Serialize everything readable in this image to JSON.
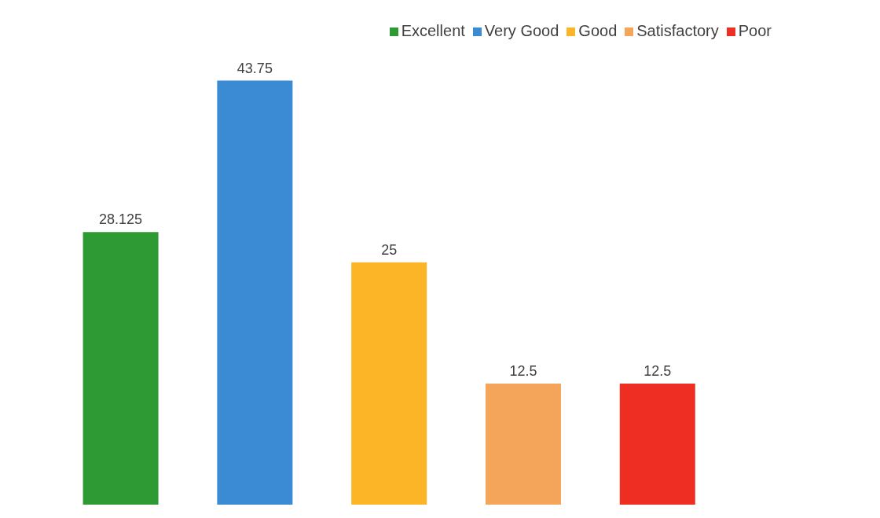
{
  "chart_data": {
    "type": "bar",
    "categories": [
      null,
      null,
      null,
      null,
      null
    ],
    "stacked": true,
    "series": [
      {
        "name": "Excellent",
        "color": "#2e9a34",
        "values": [
          28.125,
          null,
          null,
          null,
          null
        ]
      },
      {
        "name": "Very Good",
        "color": "#3a8bd4",
        "values": [
          null,
          43.75,
          null,
          null,
          null
        ]
      },
      {
        "name": "Good",
        "color": "#fbb526",
        "values": [
          null,
          null,
          25,
          null,
          null
        ]
      },
      {
        "name": "Satisfactory",
        "color": "#f5a55a",
        "values": [
          null,
          null,
          null,
          12.5,
          null
        ]
      },
      {
        "name": "Poor",
        "color": "#ef2e23",
        "values": [
          null,
          null,
          null,
          null,
          12.5
        ]
      }
    ],
    "data_labels": true,
    "legend": "top right"
  }
}
